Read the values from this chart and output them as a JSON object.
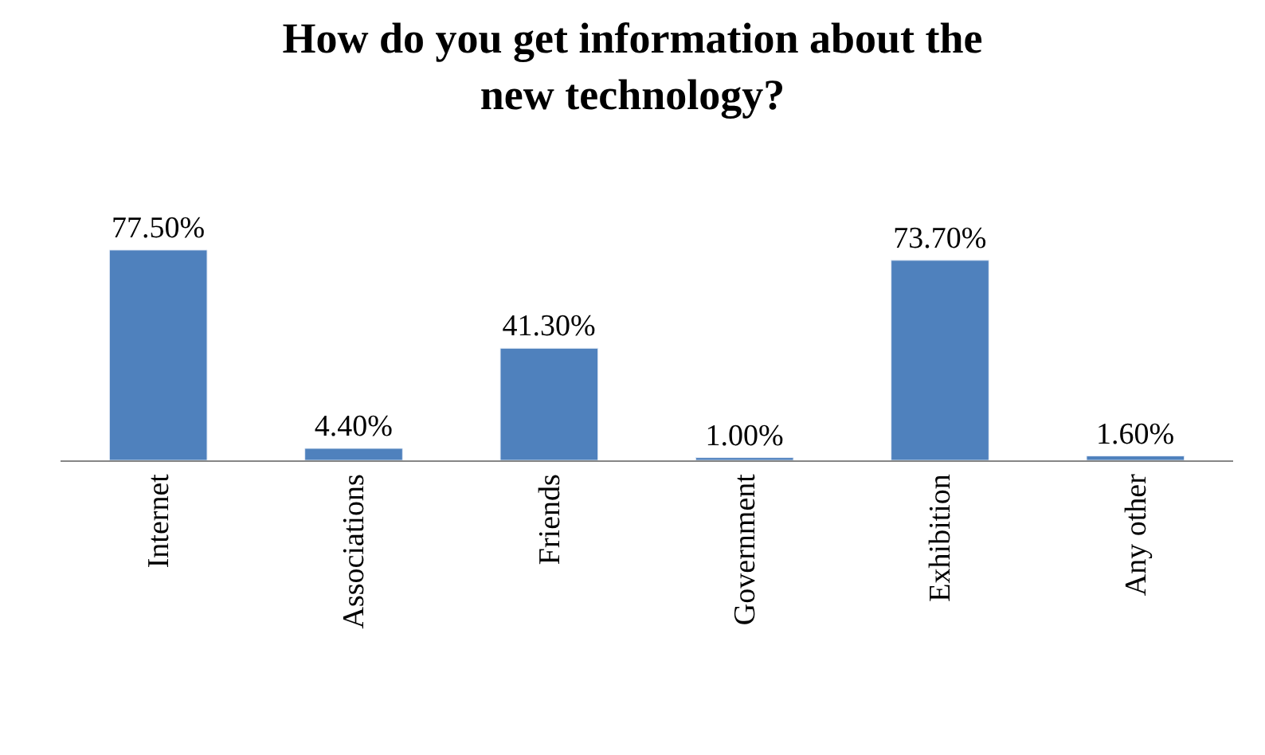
{
  "chart_data": {
    "type": "bar",
    "title": "How do you get information about the new technology?",
    "categories": [
      "Internet",
      "Associations",
      "Friends",
      "Government",
      "Exhibition",
      "Any other"
    ],
    "values": [
      77.5,
      4.4,
      41.3,
      1.0,
      73.7,
      1.6
    ],
    "value_labels": [
      "77.50%",
      "4.40%",
      "41.30%",
      "1.00%",
      "73.70%",
      "1.60%"
    ],
    "color": "#4f81bd"
  }
}
